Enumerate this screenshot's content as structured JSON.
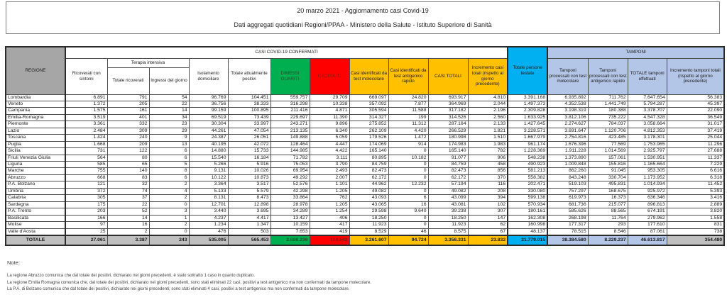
{
  "header": {
    "line1": "20 marzo 2021 - Aggiornamento casi Covid-19",
    "line2": "Dati aggregati quotidiani Regioni/PPAA - Ministero della Salute - Istituto Superiore di Sanità"
  },
  "colors": {
    "header_gray": "#a6a6a6",
    "total_gray": "#bfbfbf",
    "green": "#00b050",
    "red": "#ff0000",
    "orange": "#ffc000",
    "cyan": "#00b0f0",
    "light_blue": "#b4c6e7"
  },
  "table": {
    "group_headers": {
      "confirmed": "CASI COVID-19 CONFERMATI",
      "terapia": "Terapia intensiva",
      "tamponi": "TAMPONI"
    },
    "columns": {
      "regione": "REGIONE",
      "ricoverati": "Ricoverati con sintomi",
      "ti_totale": "Totale ricoverati",
      "ti_ingressi": "Ingressi del giorno",
      "isolamento": "Isolamento domiciliare",
      "positivi": "Totale attualmente positivi",
      "dimessi": "DIMESSI GUARITI",
      "deceduti": "DECEDUTI",
      "molecolare": "Casi identificati da test molecolare",
      "antigenico": "Casi identificati da test antigenico rapido",
      "casi_totali": "CASI TOTALI",
      "incremento_casi": "Incremento casi totali (rispetto al giorno precedente)",
      "persone_testate": "Totale persone testate",
      "tamponi_mol": "Tamponi processati con test molecolare",
      "tamponi_ant": "Tamponi processati con test antigenico rapido",
      "tamponi_tot": "TOTALE tamponi effettuati",
      "incremento_tamponi": "Incremento tamponi totali (rispetto al giorno precedente)"
    },
    "rows": [
      {
        "regione": "Lombardia",
        "values": [
          "6.891",
          "791",
          "54",
          "96.769",
          "104.451",
          "559.757",
          "29.709",
          "669.097",
          "24.820",
          "693.917",
          "4.810",
          "3.391.168",
          "6.935.892",
          "711.762",
          "7.647.654",
          "56.383"
        ]
      },
      {
        "regione": "Veneto",
        "values": [
          "1.372",
          "205",
          "22",
          "36.756",
          "38.333",
          "316.298",
          "10.338",
          "357.092",
          "7.877",
          "364.969",
          "2.044",
          "1.497.373",
          "4.352.538",
          "1.441.749",
          "5.794.287",
          "45.397"
        ]
      },
      {
        "regione": "Campania",
        "values": [
          "1.575",
          "161",
          "14",
          "99.159",
          "100.895",
          "211.416",
          "4.871",
          "305.594",
          "11.588",
          "317.182",
          "2.196",
          "2.309.828",
          "3.198.319",
          "180.388",
          "3.378.707",
          "22.090"
        ]
      },
      {
        "regione": "Emilia-Romagna",
        "values": [
          "3.519",
          "401",
          "34",
          "69.519",
          "73.439",
          "229.697",
          "11.390",
          "314.327",
          "199",
          "314.526",
          "2.560",
          "1.633.925",
          "3.812.106",
          "735.222",
          "4.547.328",
          "36.549"
        ]
      },
      {
        "regione": "Piemonte",
        "values": [
          "3.361",
          "332",
          "23",
          "30.304",
          "33.997",
          "243.271",
          "9.896",
          "275.852",
          "11.312",
          "287.164",
          "2.133",
          "1.427.645",
          "2.274.627",
          "784.037",
          "3.058.664",
          "31.017"
        ]
      },
      {
        "regione": "Lazio",
        "values": [
          "2.484",
          "309",
          "29",
          "44.261",
          "47.054",
          "213.135",
          "6.340",
          "262.109",
          "4.420",
          "266.529",
          "1.821",
          "3.228.571",
          "3.691.647",
          "1.120.706",
          "4.812.353",
          "37.419"
        ]
      },
      {
        "regione": "Toscana",
        "values": [
          "1.424",
          "240",
          "9",
          "24.387",
          "26.051",
          "149.888",
          "5.059",
          "179.526",
          "1.472",
          "180.998",
          "1.510",
          "1.667.979",
          "2.754.816",
          "423.485",
          "3.178.301",
          "25.044"
        ]
      },
      {
        "regione": "Puglia",
        "values": [
          "1.668",
          "209",
          "13",
          "40.195",
          "42.072",
          "128.464",
          "4.447",
          "174.069",
          "914",
          "174.983",
          "1.983",
          "961.174",
          "1.676.396",
          "77.569",
          "1.753.965",
          "11.296"
        ]
      },
      {
        "regione": "Sicilia",
        "values": [
          "731",
          "122",
          "6",
          "14.880",
          "15.733",
          "144.985",
          "4.422",
          "165.140",
          "0",
          "165.140",
          "782",
          "1.228.369",
          "1.911.228",
          "1.014.569",
          "2.925.797",
          "27.688"
        ]
      },
      {
        "regione": "Friuli Venezia Giulia",
        "values": [
          "564",
          "80",
          "6",
          "15.540",
          "16.184",
          "71.782",
          "3.111",
          "80.895",
          "10.182",
          "91.077",
          "906",
          "548.238",
          "1.373.890",
          "157.061",
          "1.530.951",
          "11.337"
        ]
      },
      {
        "regione": "Liguria",
        "values": [
          "585",
          "65",
          "5",
          "5.266",
          "5.916",
          "75.053",
          "3.790",
          "84.759",
          "0",
          "84.759",
          "458",
          "490.923",
          "1.009.848",
          "155.816",
          "1.165.664",
          "7.229"
        ]
      },
      {
        "regione": "Marche",
        "values": [
          "755",
          "140",
          "8",
          "9.131",
          "10.026",
          "69.954",
          "2.493",
          "82.473",
          "0",
          "82.473",
          "856",
          "581.213",
          "862.260",
          "91.045",
          "953.305",
          "6.616"
        ]
      },
      {
        "regione": "Abruzzo",
        "values": [
          "668",
          "83",
          "6",
          "10.122",
          "10.873",
          "49.292",
          "2.007",
          "62.172",
          "0",
          "62.172",
          "370",
          "558.382",
          "843.248",
          "330.704",
          "1.173.952",
          "6.318"
        ]
      },
      {
        "regione": "P.A. Bolzano",
        "values": [
          "121",
          "32",
          "2",
          "3.364",
          "3.517",
          "52.576",
          "1.101",
          "44.962",
          "12.232",
          "57.194",
          "116",
          "202.471",
          "519.103",
          "495.831",
          "1.014.934",
          "11.452"
        ]
      },
      {
        "regione": "Umbria",
        "values": [
          "372",
          "74",
          "4",
          "5.133",
          "5.579",
          "42.298",
          "1.205",
          "49.082",
          "0",
          "49.082",
          "208",
          "330.080",
          "757.297",
          "168.675",
          "925.972",
          "5.393"
        ]
      },
      {
        "regione": "Calabria",
        "values": [
          "305",
          "37",
          "2",
          "8.131",
          "8.473",
          "33.864",
          "762",
          "43.093",
          "6",
          "43.099",
          "394",
          "599.138",
          "619.973",
          "16.373",
          "636.346",
          "3.416"
        ]
      },
      {
        "regione": "Sardegna",
        "values": [
          "175",
          "22",
          "0",
          "12.701",
          "12.898",
          "28.978",
          "1.205",
          "43.065",
          "16",
          "43.081",
          "102",
          "570.934",
          "681.736",
          "215.077",
          "896.813",
          "2.889"
        ]
      },
      {
        "regione": "P.A. Trento",
        "values": [
          "203",
          "52",
          "3",
          "3.440",
          "3.695",
          "34.289",
          "1.254",
          "29.598",
          "9.640",
          "39.238",
          "307",
          "180.161",
          "585.626",
          "88.565",
          "674.191",
          "3.820"
        ]
      },
      {
        "regione": "Basilicata",
        "values": [
          "166",
          "14",
          "1",
          "4.237",
          "4.417",
          "13.427",
          "406",
          "18.250",
          "0",
          "18.250",
          "147",
          "162.308",
          "268.198",
          "11.764",
          "279.962",
          "1.558"
        ]
      },
      {
        "regione": "Molise",
        "values": [
          "97",
          "16",
          "2",
          "1.234",
          "1.347",
          "10.159",
          "417",
          "11.923",
          "0",
          "11.923",
          "62",
          "160.998",
          "177.317",
          "293",
          "177.610",
          "831"
        ]
      },
      {
        "regione": "Valle d'Aosta",
        "values": [
          "25",
          "2",
          "0",
          "476",
          "503",
          "7.653",
          "419",
          "8.529",
          "46",
          "8.575",
          "67",
          "48.137",
          "78.515",
          "8.546",
          "87.061",
          "738"
        ]
      }
    ],
    "total_row": {
      "regione": "TOTALE",
      "values": [
        "27.061",
        "3.387",
        "243",
        "535.005",
        "565.453",
        "2.686.236",
        "104.642",
        "3.261.607",
        "94.724",
        "3.356.331",
        "23.832",
        "21.779.015",
        "38.384.580",
        "8.229.237",
        "46.613.817",
        "354.480"
      ]
    }
  },
  "notes": {
    "heading": "Note:",
    "items": [
      "La regione Abruzzo comunica che dal totale dei positivi, dichiarato nei giorni precedenti, è stato sottratto 1 caso in quanto duplicato.",
      "La regione Emilia Romagna comunica che, dal totale dei positivi, dichiarato nei giorni precedenti, sono stati eliminati 22 casi, positivi a test antigenico ma non confermati da tampone molecolare.",
      "La P.A. di Bolzano comunica che dal totale dei positivi, dichiarato nei giorni precedenti, sono stati eliminati 4 casi, positivi a test antigenico ma non confermati da tampone molecolare."
    ]
  }
}
